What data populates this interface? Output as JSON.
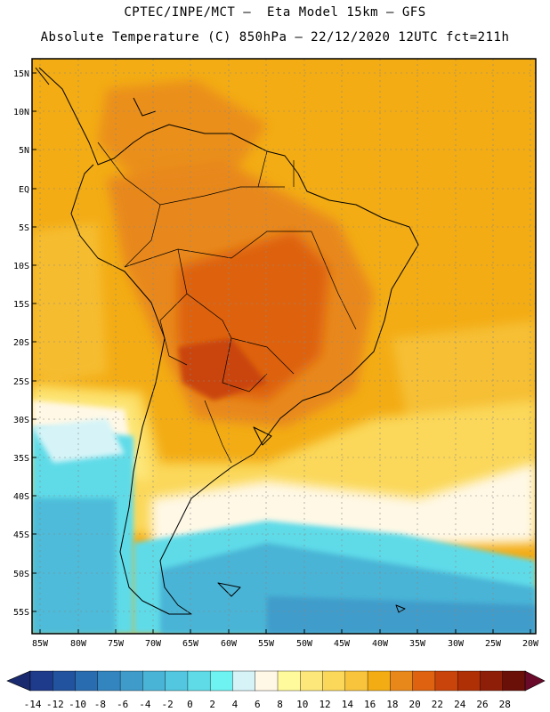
{
  "header": {
    "line1": "CPTEC/INPE/MCT –  Eta Model 15km – GFS",
    "line2": "Absolute Temperature (C) 850hPa – 22/12/2020 12UTC fct=211h"
  },
  "axes": {
    "lat_labels": [
      "15N",
      "10N",
      "5N",
      "EQ",
      "5S",
      "10S",
      "15S",
      "20S",
      "25S",
      "30S",
      "35S",
      "40S",
      "45S",
      "50S",
      "55S"
    ],
    "lon_labels": [
      "85W",
      "80W",
      "75W",
      "70W",
      "65W",
      "60W",
      "55W",
      "50W",
      "45W",
      "40W",
      "35W",
      "30W",
      "25W",
      "20W"
    ]
  },
  "colorbar": {
    "labels": [
      "-14",
      "-12",
      "-10",
      "-8",
      "-6",
      "-4",
      "-2",
      "0",
      "2",
      "4",
      "6",
      "8",
      "10",
      "12",
      "14",
      "16",
      "18",
      "20",
      "22",
      "24",
      "26",
      "28"
    ],
    "colors": [
      "#1e3a8a",
      "#22539e",
      "#2a6cb0",
      "#3385bf",
      "#3f9cca",
      "#4ab4d6",
      "#52c7df",
      "#5fdbe8",
      "#6ef2f2",
      "#d6f4f8",
      "#fff8e6",
      "#fffa9c",
      "#fde77a",
      "#fbd85a",
      "#f7c43c",
      "#f3ac14",
      "#e8881a",
      "#de6210",
      "#c9440a",
      "#b03006",
      "#8e1e08",
      "#6a1008"
    ]
  },
  "map": {
    "region": "South America",
    "colors": {
      "ocean_warm": "#f3ac14",
      "ocean_mid": "#f7c43c",
      "cold_band": "#5fdbe8",
      "deep_cold": "#3f9cca",
      "hot": "#de6210",
      "hottest": "#c9440a"
    }
  }
}
